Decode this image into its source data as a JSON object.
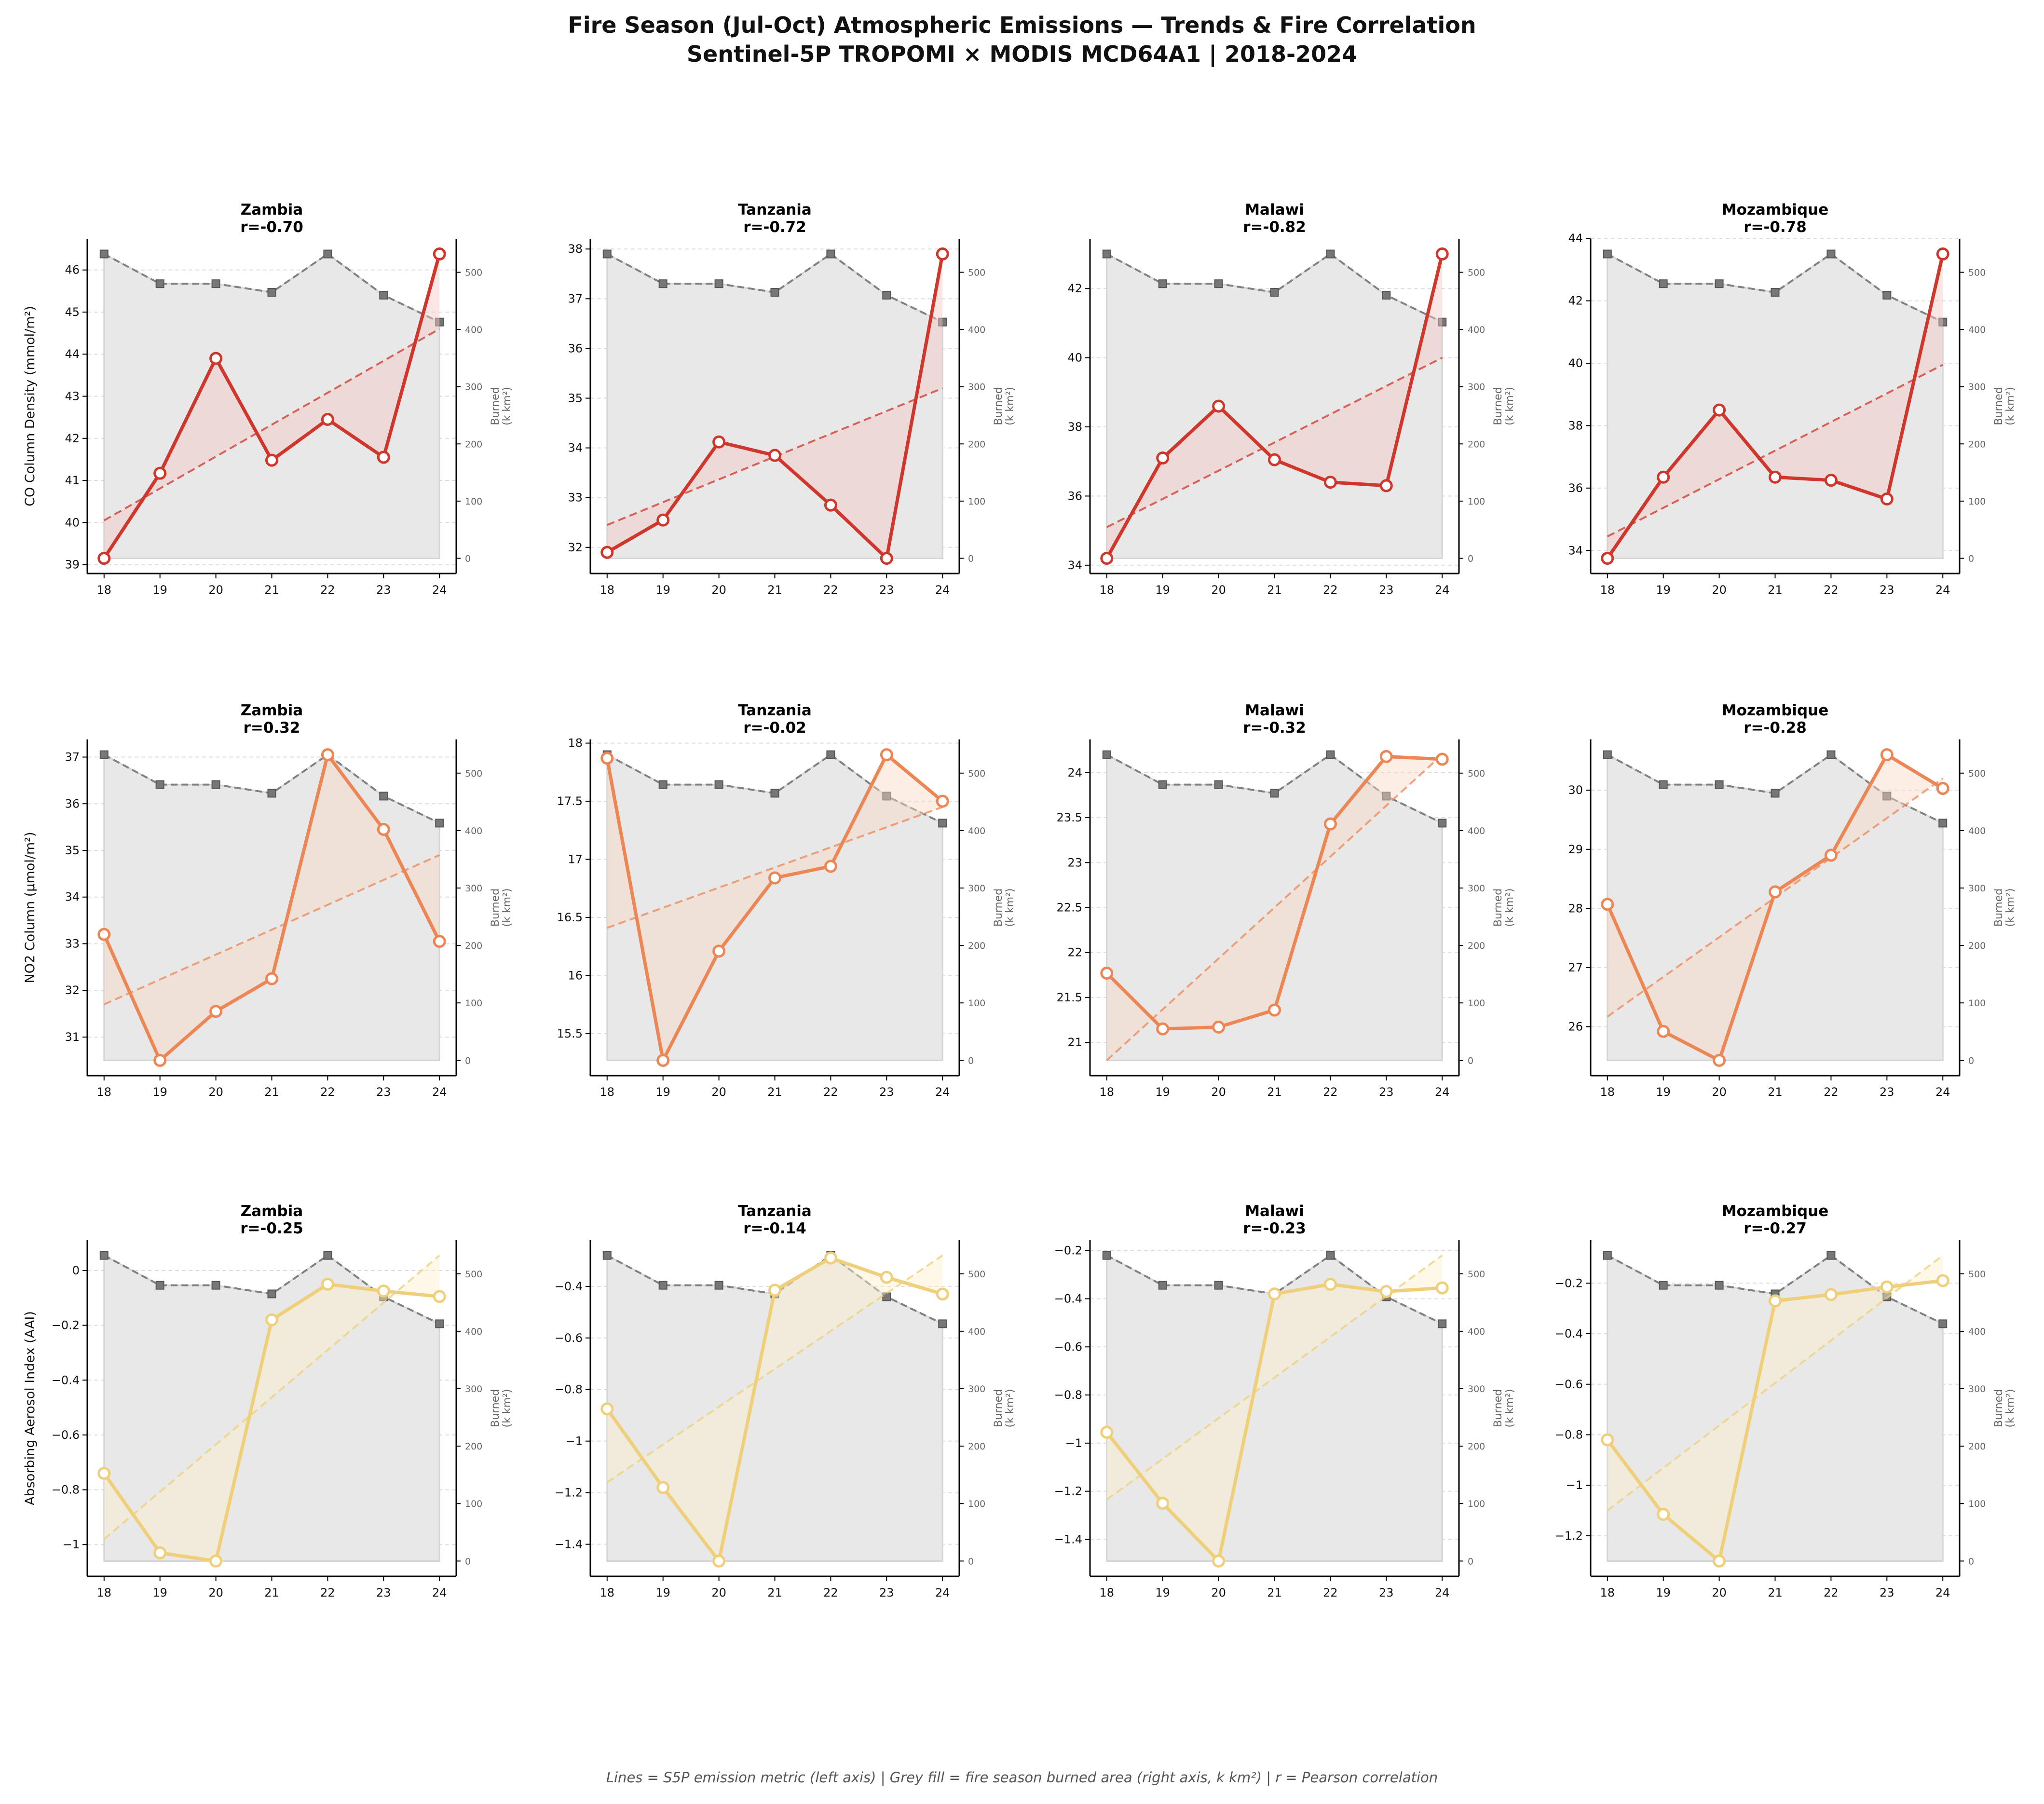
{
  "title": {
    "line1": "Fire Season (Jul-Oct) Atmospheric Emissions — Trends & Fire Correlation",
    "line2": "Sentinel-5P TROPOMI × MODIS MCD64A1 | 2018-2024"
  },
  "footer": "Lines = S5P emission metric (left axis) | Grey fill = fire season burned area (right axis, k km²) | r = Pearson correlation",
  "chart_data": {
    "type": "line",
    "x": [
      18,
      19,
      20,
      21,
      22,
      23,
      24
    ],
    "x_tick_labels": [
      "18",
      "19",
      "20",
      "21",
      "22",
      "23",
      "24"
    ],
    "burned_area": {
      "label": "Burned\n(k km²)",
      "values": [
        532,
        480,
        480,
        465,
        532,
        460,
        413
      ],
      "ticks": [
        0,
        100,
        200,
        300,
        400,
        500
      ],
      "color": "#808080",
      "fill_color": "#e8e8e8"
    },
    "grid": true,
    "rows": [
      {
        "metric": "CO",
        "ylabel": "CO Column Density (mmol/m²)",
        "color": "#d0372c",
        "fill_color": "#f4c9c6",
        "panels": [
          {
            "country": "Zambia",
            "r": "r=-0.70",
            "values": [
              39.15,
              41.17,
              43.9,
              41.48,
              42.45,
              41.55,
              46.38
            ],
            "trend": [
              40.05,
              44.6
            ],
            "ticks": [
              39,
              40,
              41,
              42,
              43,
              44,
              45,
              46
            ]
          },
          {
            "country": "Tanzania",
            "r": "r=-0.72",
            "values": [
              31.9,
              32.55,
              34.12,
              33.85,
              32.85,
              31.78,
              37.9
            ],
            "trend": [
              32.45,
              35.2
            ],
            "ticks": [
              32,
              33,
              34,
              35,
              36,
              37,
              38
            ]
          },
          {
            "country": "Malawi",
            "r": "r=-0.82",
            "values": [
              34.2,
              37.1,
              38.6,
              37.05,
              36.4,
              36.3,
              43.0
            ],
            "trend": [
              35.1,
              40.0
            ],
            "ticks": [
              34,
              36,
              38,
              40,
              42
            ]
          },
          {
            "country": "Mozambique",
            "r": "r=-0.78",
            "values": [
              33.75,
              36.35,
              38.5,
              36.35,
              36.25,
              35.65,
              43.5
            ],
            "trend": [
              34.45,
              39.95
            ],
            "ticks": [
              34,
              36,
              38,
              40,
              42,
              44
            ]
          }
        ]
      },
      {
        "metric": "NO2",
        "ylabel": "NO2 Column (µmol/m²)",
        "color": "#ec8755",
        "fill_color": "#f9d9c6",
        "panels": [
          {
            "country": "Zambia",
            "r": "r=0.32",
            "values": [
              33.2,
              30.5,
              31.55,
              32.25,
              37.05,
              35.45,
              33.05
            ],
            "trend": [
              31.7,
              34.9
            ],
            "ticks": [
              31,
              32,
              33,
              34,
              35,
              36,
              37
            ]
          },
          {
            "country": "Tanzania",
            "r": "r=-0.02",
            "values": [
              17.87,
              15.27,
              16.21,
              16.84,
              16.94,
              17.9,
              17.5
            ],
            "trend": [
              16.41,
              17.45
            ],
            "ticks": [
              15.5,
              16.0,
              16.5,
              17.0,
              17.5,
              18.0
            ]
          },
          {
            "country": "Malawi",
            "r": "r=-0.32",
            "values": [
              21.77,
              21.15,
              21.17,
              21.36,
              23.43,
              24.18,
              24.15
            ],
            "trend": [
              20.8,
              24.2
            ],
            "ticks": [
              21.0,
              21.5,
              22.0,
              22.5,
              23.0,
              23.5,
              24.0
            ]
          },
          {
            "country": "Mozambique",
            "r": "r=-0.28",
            "values": [
              28.07,
              25.92,
              25.43,
              28.28,
              28.9,
              30.6,
              30.03
            ],
            "trend": [
              26.17,
              30.2
            ],
            "ticks": [
              26,
              27,
              28,
              29,
              30
            ]
          }
        ]
      },
      {
        "metric": "AAI",
        "ylabel": "Absorbing Aerosol Index (AAI)",
        "color": "#efcf7a",
        "fill_color": "#fbefc9",
        "panels": [
          {
            "country": "Zambia",
            "r": "r=-0.25",
            "values": [
              -0.74,
              -1.03,
              -1.06,
              -0.18,
              -0.05,
              -0.075,
              -0.095
            ],
            "trend": [
              -0.98,
              0.055
            ],
            "ticks": [
              -1.0,
              -0.8,
              -0.6,
              -0.4,
              -0.2,
              0.0
            ]
          },
          {
            "country": "Tanzania",
            "r": "r=-0.14",
            "values": [
              -0.875,
              -1.18,
              -1.465,
              -0.415,
              -0.29,
              -0.365,
              -0.43
            ],
            "trend": [
              -1.16,
              -0.28
            ],
            "ticks": [
              -1.4,
              -1.2,
              -1.0,
              -0.8,
              -0.6,
              -0.4
            ]
          },
          {
            "country": "Malawi",
            "r": "r=-0.23",
            "values": [
              -0.955,
              -1.25,
              -1.49,
              -0.38,
              -0.34,
              -0.37,
              -0.355
            ],
            "trend": [
              -1.235,
              -0.22
            ],
            "ticks": [
              -1.4,
              -1.2,
              -1.0,
              -0.8,
              -0.6,
              -0.4,
              -0.2
            ]
          },
          {
            "country": "Mozambique",
            "r": "r=-0.27",
            "values": [
              -0.82,
              -1.115,
              -1.3,
              -0.27,
              -0.245,
              -0.215,
              -0.19
            ],
            "trend": [
              -1.1,
              -0.09
            ],
            "ticks": [
              -1.2,
              -1.0,
              -0.8,
              -0.6,
              -0.4,
              -0.2
            ]
          }
        ]
      }
    ]
  }
}
